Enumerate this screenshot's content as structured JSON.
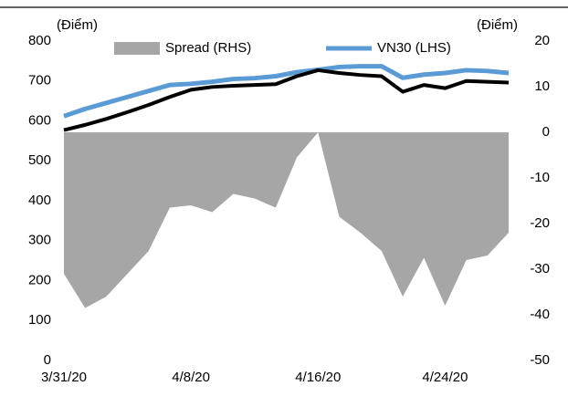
{
  "chart_data": {
    "type": "line",
    "y_label": "(Điểm)",
    "y2_label": "(Điểm)",
    "categories": [
      "3/31/20",
      null,
      null,
      null,
      null,
      null,
      "4/8/20",
      null,
      null,
      null,
      null,
      null,
      "4/16/20",
      null,
      null,
      null,
      null,
      null,
      "4/24/20",
      null,
      null,
      null
    ],
    "series": [
      {
        "name": "Spread (RHS)",
        "type": "area",
        "axis": "y2",
        "color": "#a6a6a6",
        "values": [
          -31,
          -38.5,
          -36,
          -31,
          -26,
          -16.5,
          -16,
          -17.5,
          -13.5,
          -14.5,
          -16.5,
          -5.5,
          0,
          -18.5,
          -22,
          -26,
          -36,
          -27.5,
          -38,
          -28,
          -27,
          -22
        ]
      },
      {
        "name": "VN30 (LHS)",
        "type": "line",
        "color": "#5b9bd5",
        "values": [
          612,
          630,
          645,
          660,
          675,
          690,
          693,
          698,
          705,
          707,
          712,
          722,
          728,
          735,
          737,
          737,
          708,
          716,
          720,
          727,
          725,
          720
        ]
      },
      {
        "type": "line",
        "color": "#000000",
        "values": [
          577,
          590,
          605,
          622,
          640,
          660,
          678,
          685,
          688,
          690,
          692,
          712,
          727,
          720,
          715,
          712,
          673,
          690,
          682,
          700,
          698,
          696
        ]
      }
    ],
    "ylim": [
      0,
      800
    ],
    "yticks": [
      0,
      100,
      200,
      300,
      400,
      500,
      600,
      700,
      800
    ],
    "y2lim": [
      -50,
      20
    ],
    "y2ticks": [
      -50,
      -40,
      -30,
      -20,
      -10,
      0,
      10,
      20
    ],
    "legend": "top"
  }
}
